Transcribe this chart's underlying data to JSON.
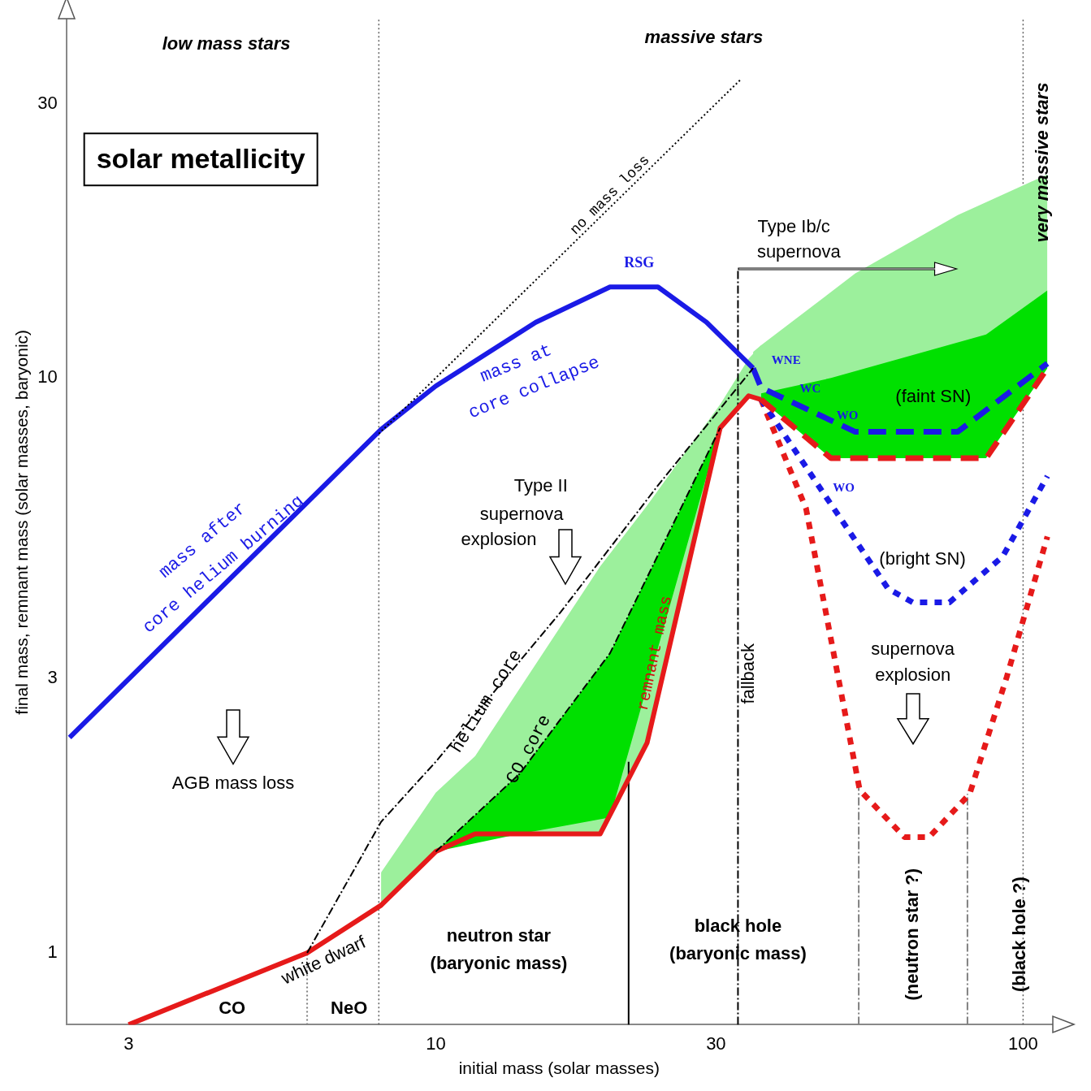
{
  "chart_data": {
    "type": "line",
    "title": "solar metallicity",
    "xlabel": "initial mass (solar masses)",
    "ylabel": "final mass, remnant mass (solar masses, baryonic)",
    "log": "xy",
    "xlim": [
      2.35,
      112
    ],
    "ylim": [
      0.75,
      42
    ],
    "xticks": [
      3,
      10,
      30,
      100
    ],
    "yticks": [
      1,
      3,
      10,
      30
    ],
    "legend": false,
    "series": [
      {
        "type": "line",
        "color": "#000000",
        "line_style": "dotted",
        "x": [
          8,
          33
        ],
        "values": [
          8,
          33
        ]
      },
      {
        "type": "line",
        "color": "#000000",
        "line_style": "dashed",
        "x": [
          6.04,
          8.07,
          10,
          16.3,
          24.0,
          34.7
        ],
        "values": [
          1.0,
          1.69,
          2.15,
          3.91,
          6.54,
          10.4
        ]
      },
      {
        "type": "line",
        "color": "#000000",
        "line_style": "dashed",
        "x": [
          10,
          13.9,
          19.8,
          30.5
        ],
        "values": [
          1.5,
          2.05,
          3.32,
          8.19
        ],
        "lower": [
          1.5,
          1.61,
          1.72,
          8.19
        ],
        "upper": [
          1.5,
          2.05,
          3.32,
          8.19
        ]
      },
      {
        "type": "line",
        "color": "#1a1ae6",
        "line_style": "solid",
        "x": [
          2.38,
          8.07,
          10,
          14.8,
          19.8,
          23.9,
          28.9,
          34.7
        ],
        "values": [
          2.37,
          8.14,
          9.68,
          12.5,
          14.4,
          14.4,
          12.5,
          10.4
        ]
      },
      {
        "type": "line",
        "color": "#e61a1a",
        "line_style": "solid",
        "x": [
          3,
          6.04,
          8.07,
          10,
          11.67,
          19.05,
          22.9,
          30.5,
          34.1,
          35.8
        ],
        "values": [
          0.75,
          1.0,
          1.21,
          1.5,
          1.61,
          1.61,
          2.32,
          8.19,
          9.31,
          9.17
        ],
        "lower": [
          null,
          null,
          1.21,
          1.5,
          1.61,
          1.61,
          2.32,
          8.19,
          9.31,
          9.17
        ],
        "upper": [
          null,
          null,
          1.38,
          1.9,
          2.2,
          4.7,
          6.0,
          9.0,
          10.8,
          11.4
        ]
      },
      {
        "type": "line",
        "color": "#1a1ae6",
        "line_style": "dashed",
        "x": [
          34.7,
          35.8,
          51.8,
          77.4,
          110
        ],
        "values": [
          10.4,
          9.62,
          8.06,
          8.06,
          10.6
        ],
        "lower": [
          9.25,
          9.17,
          7.25,
          7.25,
          10.4
        ],
        "upper": [
          11.1,
          11.4,
          15.2,
          19.2,
          22.6
        ]
      },
      {
        "type": "line",
        "color": "#e61a1a",
        "line_style": "dashed",
        "x": [
          35.8,
          47.1,
          86.5,
          110
        ],
        "values": [
          9.17,
          7.25,
          7.25,
          10.4
        ],
        "lower": [
          9.17,
          7.25,
          7.25,
          10.4
        ],
        "upper": [
          9.4,
          10.0,
          11.9,
          14.2
        ]
      },
      {
        "type": "line",
        "color": "#1a1ae6",
        "line_style": "dotted",
        "x": [
          35.8,
          45.6,
          58.9,
          64.9,
          74.9,
          92.3,
          110
        ],
        "values": [
          9.17,
          6.33,
          4.3,
          4.07,
          4.07,
          4.89,
          6.75
        ]
      },
      {
        "type": "line",
        "color": "#e61a1a",
        "line_style": "dotted",
        "x": [
          35.8,
          42.7,
          52.7,
          62.8,
          69.2,
          81.1,
          93.8,
          110
        ],
        "values": [
          9.17,
          5.93,
          1.92,
          1.59,
          1.59,
          1.89,
          3.02,
          5.3
        ]
      },
      {
        "type": "line",
        "color": "#808080",
        "line_style": "dotted",
        "x": [
          6.04,
          6.04
        ],
        "values": [
          0.75,
          1.0
        ]
      },
      {
        "type": "line",
        "color": "#000000",
        "line_style": "solid",
        "x": [
          21.3,
          21.3
        ],
        "values": [
          0.75,
          2.15
        ]
      },
      {
        "type": "line",
        "color": "#000000",
        "line_style": "dashed",
        "x": [
          32.7,
          32.7
        ],
        "values": [
          0.75,
          15.5
        ]
      },
      {
        "type": "line",
        "color": "#808080",
        "line_style": "dashed",
        "x": [
          52.5,
          52.5
        ],
        "values": [
          0.75,
          1.95
        ]
      },
      {
        "type": "line",
        "color": "#808080",
        "line_style": "dashed",
        "x": [
          80.4,
          80.4
        ],
        "values": [
          0.75,
          1.89
        ]
      }
    ],
    "ref_lines": [
      {
        "axis": "x",
        "value": 8,
        "line_style": "dotted",
        "color": "#606060"
      },
      {
        "axis": "x",
        "value": 100,
        "line_style": "dotted",
        "color": "#606060"
      }
    ],
    "annotations": [
      "low mass stars",
      "massive stars",
      "very massive stars",
      "no mass loss",
      "RSG",
      "mass at",
      "core collapse",
      "mass after",
      "core helium burning",
      "Type Ib/c",
      "supernova",
      "WNE",
      "WC",
      "WO",
      "(faint SN)",
      "WO",
      "Type II",
      "supernova",
      "explosion",
      "(bright SN)",
      "supernova",
      "explosion",
      "fallback",
      "helium core",
      "CO core",
      "remnant mass",
      "AGB mass loss",
      "white dwarf",
      "CO",
      "NeO",
      "neutron star",
      "(baryonic mass)",
      "black hole",
      "(baryonic mass)",
      "(neutron star ?)",
      "(black hole ?)"
    ]
  }
}
